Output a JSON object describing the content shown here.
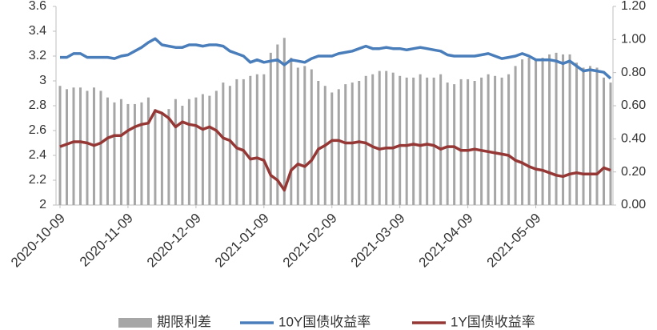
{
  "chart_data": {
    "type": "combo",
    "categories": [
      "2020-10-09",
      null,
      null,
      null,
      null,
      null,
      null,
      null,
      null,
      null,
      "2020-11-09",
      null,
      null,
      null,
      null,
      null,
      null,
      null,
      null,
      null,
      "2020-12-09",
      null,
      null,
      null,
      null,
      null,
      null,
      null,
      null,
      null,
      "2021-01-09",
      null,
      null,
      null,
      null,
      null,
      null,
      null,
      null,
      null,
      "2021-02-09",
      null,
      null,
      null,
      null,
      null,
      null,
      null,
      null,
      null,
      "2021-03-09",
      null,
      null,
      null,
      null,
      null,
      null,
      null,
      null,
      null,
      "2021-04-09",
      null,
      null,
      null,
      null,
      null,
      null,
      null,
      null,
      null,
      "2021-05-09",
      null,
      null,
      null,
      null,
      null,
      null,
      null,
      null,
      null,
      null,
      null
    ],
    "series": [
      {
        "name": "期限利差",
        "type": "bar",
        "axis": "y2",
        "color": "#a6a6a6",
        "values": [
          0.72,
          0.7,
          0.71,
          0.71,
          0.69,
          0.71,
          0.69,
          0.65,
          0.62,
          0.64,
          0.61,
          0.61,
          0.62,
          0.65,
          0.58,
          0.55,
          0.58,
          0.64,
          0.6,
          0.64,
          0.65,
          0.67,
          0.66,
          0.69,
          0.74,
          0.72,
          0.76,
          0.76,
          0.78,
          0.79,
          0.79,
          0.92,
          0.97,
          1.01,
          0.89,
          0.83,
          0.84,
          0.82,
          0.75,
          0.72,
          0.68,
          0.7,
          0.73,
          0.74,
          0.75,
          0.78,
          0.79,
          0.81,
          0.81,
          0.8,
          0.78,
          0.77,
          0.77,
          0.79,
          0.77,
          0.77,
          0.79,
          0.74,
          0.73,
          0.76,
          0.76,
          0.75,
          0.77,
          0.79,
          0.78,
          0.77,
          0.79,
          0.84,
          0.88,
          0.89,
          0.88,
          0.89,
          0.91,
          0.92,
          0.91,
          0.91,
          0.86,
          0.83,
          0.84,
          0.83,
          0.77,
          0.74
        ]
      },
      {
        "name": "10Y国债收益率",
        "type": "line",
        "color": "#4a7ebb",
        "values": [
          3.19,
          3.19,
          3.22,
          3.22,
          3.19,
          3.19,
          3.19,
          3.19,
          3.18,
          3.2,
          3.21,
          3.24,
          3.27,
          3.31,
          3.34,
          3.29,
          3.28,
          3.27,
          3.27,
          3.29,
          3.29,
          3.28,
          3.29,
          3.29,
          3.28,
          3.24,
          3.22,
          3.2,
          3.15,
          3.17,
          3.15,
          3.16,
          3.17,
          3.13,
          3.17,
          3.16,
          3.15,
          3.18,
          3.2,
          3.2,
          3.2,
          3.22,
          3.23,
          3.24,
          3.26,
          3.28,
          3.26,
          3.26,
          3.27,
          3.26,
          3.26,
          3.25,
          3.26,
          3.27,
          3.26,
          3.25,
          3.24,
          3.21,
          3.2,
          3.2,
          3.2,
          3.2,
          3.21,
          3.22,
          3.2,
          3.18,
          3.19,
          3.2,
          3.22,
          3.2,
          3.17,
          3.17,
          3.17,
          3.16,
          3.14,
          3.16,
          3.12,
          3.08,
          3.09,
          3.08,
          3.07,
          3.02
        ]
      },
      {
        "name": "1Y国债收益率",
        "type": "line",
        "color": "#953735",
        "values": [
          2.47,
          2.49,
          2.51,
          2.51,
          2.5,
          2.48,
          2.5,
          2.54,
          2.56,
          2.56,
          2.6,
          2.63,
          2.65,
          2.66,
          2.76,
          2.74,
          2.7,
          2.63,
          2.67,
          2.65,
          2.64,
          2.61,
          2.63,
          2.6,
          2.54,
          2.52,
          2.46,
          2.44,
          2.37,
          2.38,
          2.36,
          2.24,
          2.2,
          2.12,
          2.28,
          2.33,
          2.31,
          2.36,
          2.45,
          2.48,
          2.52,
          2.52,
          2.5,
          2.5,
          2.51,
          2.5,
          2.47,
          2.45,
          2.46,
          2.46,
          2.48,
          2.48,
          2.49,
          2.48,
          2.49,
          2.48,
          2.45,
          2.47,
          2.47,
          2.44,
          2.44,
          2.45,
          2.44,
          2.43,
          2.42,
          2.41,
          2.4,
          2.36,
          2.34,
          2.31,
          2.29,
          2.28,
          2.26,
          2.24,
          2.23,
          2.25,
          2.26,
          2.25,
          2.25,
          2.25,
          2.3,
          2.28
        ]
      }
    ],
    "ylim": [
      2,
      3.6
    ],
    "yticks": [
      2,
      2.2,
      2.4,
      2.6,
      2.8,
      3,
      3.2,
      3.4,
      3.6
    ],
    "y2lim": [
      0,
      1.2
    ],
    "y2ticks": [
      {
        "value": 0,
        "label": "0.00"
      },
      {
        "value": 0.2,
        "label": "0.20"
      },
      {
        "value": 0.4,
        "label": "0.40"
      },
      {
        "value": 0.6,
        "label": "0.60"
      },
      {
        "value": 0.8,
        "label": "0.80"
      },
      {
        "value": 1,
        "label": "1.00"
      },
      {
        "value": 1.2,
        "label": "1.20"
      }
    ],
    "legend": "bottom",
    "grid": false
  }
}
